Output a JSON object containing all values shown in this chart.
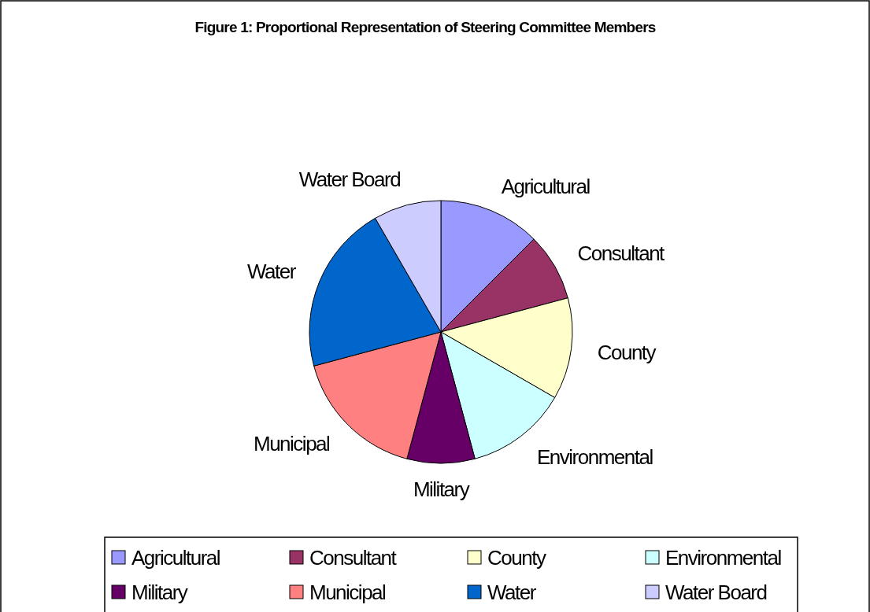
{
  "chart_data": {
    "type": "pie",
    "title": "Figure 1: Proportional Representation of Steering Committee Members",
    "categories": [
      "Agricultural",
      "Consultant",
      "County",
      "Environmental",
      "Military",
      "Municipal",
      "Water",
      "Water Board"
    ],
    "values": [
      12.5,
      8.33,
      12.5,
      12.5,
      8.33,
      16.67,
      20.84,
      8.33
    ],
    "colors": [
      "#9999ff",
      "#993366",
      "#ffffcc",
      "#ccffff",
      "#660066",
      "#ff8080",
      "#0066cc",
      "#ccccff"
    ],
    "legend": "bottom"
  }
}
